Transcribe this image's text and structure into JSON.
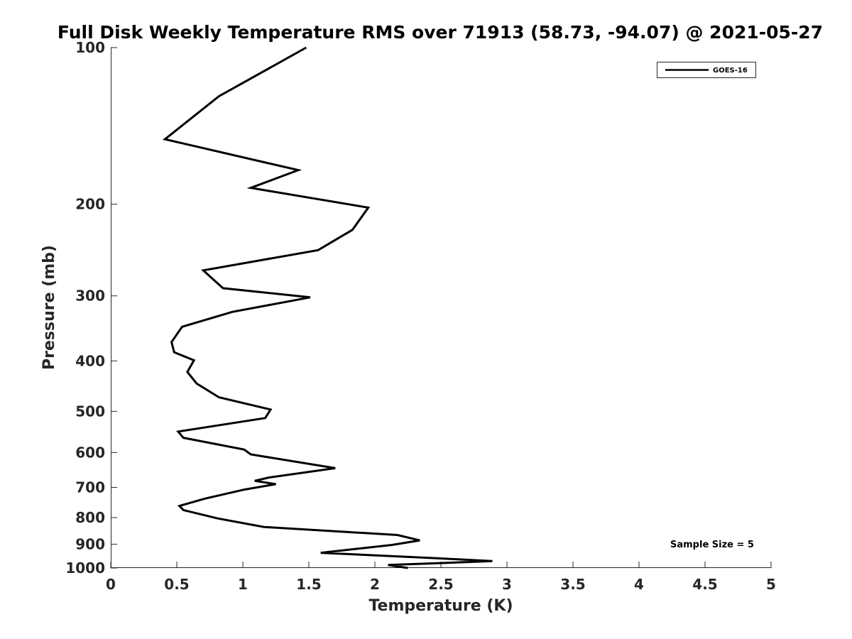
{
  "chart_data": {
    "type": "line",
    "title": "Full Disk Weekly Temperature RMS over 71913 (58.73, -94.07) @ 2021-05-27",
    "xlabel": "Temperature (K)",
    "ylabel": "Pressure (mb)",
    "xlim": [
      0,
      5
    ],
    "ylim": [
      100,
      1000
    ],
    "yscale": "log",
    "yreversed": true,
    "x_ticks": [
      "0",
      "0.5",
      "1",
      "1.5",
      "2",
      "2.5",
      "3",
      "3.5",
      "4",
      "4.5",
      "5"
    ],
    "y_ticks": [
      "100",
      "200",
      "300",
      "400",
      "500",
      "600",
      "700",
      "800",
      "900",
      "1000"
    ],
    "grid": false,
    "legend_position": "top-right",
    "series": [
      {
        "name": "GOES-16",
        "color": "#000000",
        "x": [
          1.48,
          0.82,
          0.41,
          1.42,
          1.06,
          1.95,
          1.83,
          1.57,
          0.7,
          0.85,
          1.51,
          0.92,
          0.54,
          0.46,
          0.48,
          0.63,
          0.58,
          0.65,
          0.82,
          1.21,
          1.17,
          0.51,
          0.55,
          1.01,
          1.06,
          1.7,
          1.2,
          1.09,
          1.25,
          1.01,
          0.71,
          0.52,
          0.55,
          0.81,
          1.16,
          2.17,
          2.34,
          2.13,
          1.59,
          2.47,
          2.89,
          2.1,
          2.25
        ],
        "y": [
          100,
          124,
          150,
          172,
          186,
          203,
          224,
          245,
          268,
          290,
          302,
          322,
          344,
          368,
          385,
          399,
          420,
          442,
          470,
          496,
          515,
          547,
          562,
          592,
          605,
          643,
          670,
          680,
          690,
          707,
          736,
          760,
          774,
          803,
          834,
          864,
          885,
          903,
          935,
          958,
          970,
          987,
          1000
        ]
      }
    ],
    "annotations": [
      "Sample Size = 5"
    ]
  }
}
